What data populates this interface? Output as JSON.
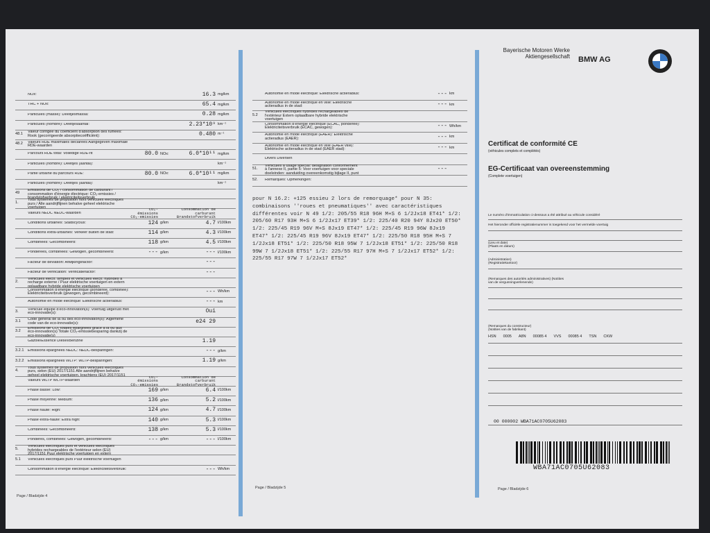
{
  "page4": {
    "rows": [
      {
        "label": "NOx:",
        "v2": "16.3",
        "u2": "mg/km"
      },
      {
        "label": "THC + NOx:",
        "v2": "65.4",
        "u2": "mg/km"
      },
      {
        "label": "Particules (masse): Deeltjesmassa:",
        "v2": "0.28",
        "u2": "mg/km"
      },
      {
        "label": "Particules (nombre): Deeltjesaantal:",
        "v2": "2.23*10⁹",
        "u2": "km⁻¹"
      },
      {
        "num": "48.1",
        "label": "Valeur corrigée du coefficient d'absorption des fumées: Rook (gecorrigeerde absorptiecoëfficiënt):",
        "v2": "0.480",
        "u2": "m⁻¹"
      },
      {
        "num": "48.2",
        "label": "Valeurs RDE maximales déclarées Aangegeven maximale RDE-waarden"
      },
      {
        "label": "Parcours RDE total: Volledige RDE-rit",
        "v1": "80.0",
        "u1": "NOx:",
        "v2": "6.0*10¹¹",
        "u2": "mg/km"
      },
      {
        "label": "Particules (nombre): Deeltjes (aantal):",
        "u2": "km⁻¹"
      },
      {
        "label": "Partie urbaine du parcours RDE:",
        "v1": "80.0",
        "u1": "NOx:",
        "v2": "6.0*10¹¹",
        "u2": "mg/km"
      },
      {
        "label": "Particules (nombre): Deeltjes (aantal):",
        "u2": "km⁻¹"
      },
      {
        "num": "49",
        "label": "Émissions de CO₂ / consommation de carburant / consommation d'énergie électrique: CO₂-emissies / brandstofverbruik / elektriciteitsverbruik"
      },
      {
        "num": "1.",
        "label": "Tous systèmes de propulsion hors véhicules électriques purs / Alle aandrijflijnen behalve geheel elektrische voertuigen"
      },
      {
        "label": "Valeurs NEDC NEDC-waarden",
        "v1": "CO₂-émissions CO₂-emissies",
        "v2": "Consommation de carburant Brandstofverbruik"
      },
      {
        "label": "Conditions urbaines: Stadscyclus:",
        "v1": "124",
        "u1": "g/km",
        "v2": "4.7",
        "u2": "l/100km"
      },
      {
        "label": "Conditions extra-urbaines: Verkeer buiten de stad:",
        "v1": "114",
        "u1": "g/km",
        "v2": "4.3",
        "u2": "l/100km"
      },
      {
        "label": "Combinées: Gecombineerd:",
        "v1": "118",
        "u1": "g/km",
        "v2": "4.5",
        "u2": "l/100km"
      },
      {
        "label": "Pondérées, combinées: Gewogen, gecombineerd:",
        "v1": "---",
        "u1": "g/km",
        "v2": "---",
        "u2": "l/100km"
      },
      {
        "label": "Facteur de déviation: Afwijkingsfactor:",
        "v2": "---"
      },
      {
        "label": "Facteur de vérification: Verificatiefactor:",
        "v2": "---"
      },
      {
        "num": "2.",
        "label": "Véhicules électr. simples et véhicules électr. hybrides à recharge externe / Puur elektrische voertuigen en extern oplaadbare hybride elektrische voertuigen"
      },
      {
        "label": "Consommation d'énergie électrique (pondérée, combinée): Elektriciteitsverbruik (gewogen, gecombineerd):",
        "v2": "---",
        "u2": "Wh/km"
      },
      {
        "label": "Autonomie en mode électrique: Elektrische actieradius:",
        "v2": "---",
        "u2": "km"
      },
      {
        "num": "3.",
        "label": "Véhicule équipé d'éco-innovation(s): Voertuig uitgerust met eco-innovatie(s):",
        "v2": "Oui"
      },
      {
        "num": "3.1",
        "label": "Code général de la ou des éco-innovation(s): Algemene code van de eco-innovatie(s):",
        "v2": "e24 29"
      },
      {
        "num": "3.2",
        "label": "Émissions de CO₂ totales épargnées grâce à la ou aux éco-innovation(s) Totale CO₂-emissiebesparing dankzij de eco-innovatie(s)"
      },
      {
        "label": "Gazole/Essence Diesel/Benzine",
        "v2": "1.19"
      },
      {
        "num": "3.2.1",
        "label": "Émissions épargnées NEDC: NEDC-besparingen:",
        "v2": "---",
        "u2": "g/km"
      },
      {
        "num": "3.2.2",
        "label": "Émissions épargnées WLTP: WLTP-besparingen:",
        "v2": "1.19",
        "u2": "g/km"
      },
      {
        "num": "4.",
        "label": "Tous systèmes de propulsion hors véhicules électriques purs, selon (EU) 2017/1151 Alle aandrijflijnen behalve geheel elektrische voertuigen, krachtens (EU) 2017/1151"
      },
      {
        "label": "Valeurs WLTP WLTP-waarden",
        "v1": "CO₂-émissions CO₂-emissies",
        "v2": "Consommation de carburant Brandstofverbruik"
      },
      {
        "label": "Phase basse: Low:",
        "v1": "169",
        "u1": "g/km",
        "v2": "6.4",
        "u2": "l/100km"
      },
      {
        "label": "Phase moyenne: Medium:",
        "v1": "136",
        "u1": "g/km",
        "v2": "5.2",
        "u2": "l/100km"
      },
      {
        "label": "Phase haute: High:",
        "v1": "124",
        "u1": "g/km",
        "v2": "4.7",
        "u2": "l/100km"
      },
      {
        "label": "Phase extra-haute: Extra high:",
        "v1": "140",
        "u1": "g/km",
        "v2": "5.3",
        "u2": "l/100km"
      },
      {
        "label": "Combinées: Gecombineerd:",
        "v1": "138",
        "u1": "g/km",
        "v2": "5.3",
        "u2": "l/100km"
      },
      {
        "label": "Pondérés, combinées: Gewogen, gecombineerd:",
        "v1": "---",
        "u1": "g/km",
        "v2": "---",
        "u2": "l/100km"
      },
      {
        "num": "5.",
        "label": "Véhicules électriques purs et véhicules électriques hybrides rechargeables de l'extérieur selon (EU) 2017/1151 Puur elektrische voertuigen en extern oplaadbare hybride elektrische voertuigen, krachtens (EU) 2017/1151"
      },
      {
        "num": "5.1",
        "label": "Véhicules électriques purs Puur elektrische voertuigen"
      },
      {
        "label": "Consommation d'énergie électrique: Elektriciteitsverbruik:",
        "v2": "---",
        "u2": "Wh/km"
      }
    ],
    "footer": "Page / Bladzijde 4"
  },
  "page5": {
    "rows": [
      {
        "label": "Autonomie en mode électrique: Elektrische actieradius:",
        "v2": "---",
        "u2": "km"
      },
      {
        "label": "Autonomie en mode électrique en ville: Elektrische actieradius in de stad:",
        "v2": "---",
        "u2": "km"
      },
      {
        "num": "5.2",
        "label": "Véhicules électriques hybrides rechargeables de l'extérieur Extern oplaadbare hybride elektrische voertuigen"
      },
      {
        "label": "Consommation d'énergie électrique (ECAC, pondérée): Elektriciteitsverbruik (ECAC, gewogen):",
        "v2": "---",
        "u2": "Wh/km"
      },
      {
        "label": "Autonomie en mode électrique (EAER): Elektrische actieradius (EAER):",
        "v2": "---",
        "u2": "km"
      },
      {
        "label": "Autonomie en mode électrique en ville (EAER ville): Elektrische actieradius in de stad (EAER stad):",
        "v2": "---",
        "u2": "km"
      },
      {
        "label": "Divers Diversen"
      },
      {
        "num": "51.",
        "label": "Véhicules à usage spécial: désignation conformément à l'annexe II, partie 5: Voor voertuigen voor speciale doeleinden: aanduiding overeenkomstig bijlage II, punt 5:",
        "v2": "---"
      },
      {
        "num": "52.",
        "label": "Remarques: Opmerkingen:"
      }
    ],
    "remarks": "pour N 16.2: +125 essieu 2 lors de remorquage* pour N 35: combinaisons ''roues et pneumatiques'' avec caractéristiques différentes voir N 49 1/2: 205/55 R18 96H M+S 6 1/2Jx18 ET41* 1/2: 205/60 R17 93H M+S 6 1/2Jx17 ET39* 1/2: 225/40 R20 94Y 8Jx20 ET50* 1/2: 225/45 R19 96V M+S 8Jx19 ET47* 1/2: 225/45 R19 96W 8Jx19 ET47* 1/2: 225/45 R19 96V 8Jx19 ET47* 1/2: 225/50 R18 95H M+S 7 1/2Jx18 ET51* 1/2: 225/50 R18 95W 7 1/2Jx18 ET51* 1/2: 225/50 R18 99W 7 1/2Jx18 ET51* 1/2: 225/55 R17 97H M+S 7 1/2Jx17 ET52* 1/2: 225/55 R17 97W 7 1/2Jx17 ET52*",
    "footer": "Page / Bladzijde 5"
  },
  "page6": {
    "company": "Bayerische Motoren Werke Aktiengesellschaft",
    "brand": "BMW AG",
    "title_fr": "Certificat de conformité CE",
    "subtitle_fr": "(véhicules complets et complétés)",
    "title_nl": "EG-Certificaat van overeenstemming",
    "subtitle_nl": "(Complete voertuigen)",
    "reg_fr": "Le numéro d'immatriculation ci-dessous a été attribué au véhicule considéré",
    "reg_nl": "Het hieronder officiële registratienummer is toegekend voor het vermelde voertuig",
    "place": "(Lieu et date) (Plaats en datum)",
    "administration": "(Administration) (Registratiekantoor)",
    "authority_remarks": "(Remarques des autorités administratives) (Notities van de vergunningverlenende)",
    "maker_remarks": "(Remarques du constructeur) (Notities van de fabrikant)",
    "codes": [
      "HSN",
      "0005",
      "A8N",
      "00085 4",
      "VVS",
      "00085 4",
      "TSN",
      "CKW"
    ],
    "serial": "00 000002 WBA71AC0705U62083",
    "barcode": "WBA71AC0705U62083",
    "footer": "Page / Bladzijde 6"
  }
}
